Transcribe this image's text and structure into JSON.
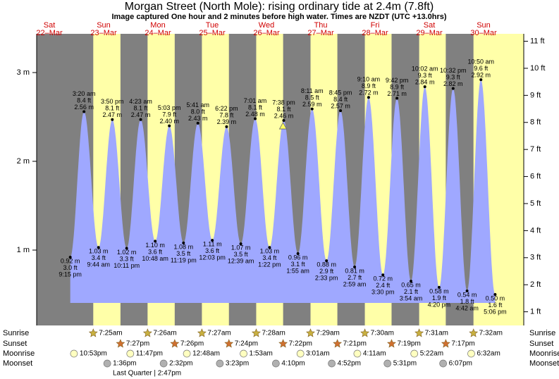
{
  "title": "Morgan Street (North Mole): rising  ordinary tide at 2.4m (7.8ft)",
  "subtitle": "Image captured One hour and 2 minutes before high water. Times are NZDT (UTC +13.0hrs)",
  "m_ticks": [
    {
      "value": 1,
      "label": "1 m"
    },
    {
      "value": 2,
      "label": "2 m"
    },
    {
      "value": 3,
      "label": "3 m"
    }
  ],
  "ft_ticks": [
    {
      "value": 1,
      "label": "1 ft"
    },
    {
      "value": 2,
      "label": "2 ft"
    },
    {
      "value": 3,
      "label": "3 ft"
    },
    {
      "value": 4,
      "label": "4 ft"
    },
    {
      "value": 5,
      "label": "5 ft"
    },
    {
      "value": 6,
      "label": "6 ft"
    },
    {
      "value": 7,
      "label": "7 ft"
    },
    {
      "value": 8,
      "label": "8 ft"
    },
    {
      "value": 9,
      "label": "9 ft"
    },
    {
      "value": 10,
      "label": "10 ft"
    },
    {
      "value": 11,
      "label": "11 ft"
    }
  ],
  "row_labels": {
    "sunrise": "Sunrise",
    "sunset": "Sunset",
    "moonrise": "Moonrise",
    "moonset": "Moonset"
  },
  "moon_phase": "Last Quarter | 2:47pm",
  "days": [
    {
      "weekday": "Sat",
      "date": "22–Mar",
      "moonrise": "10:53pm",
      "tides": [
        {
          "time": "9:15 pm",
          "m": 0.92,
          "m_label": "0.92 m",
          "ft_label": "3.0 ft",
          "type": "low"
        }
      ]
    },
    {
      "weekday": "Sun",
      "date": "23–Mar",
      "sunrise": "7:25am",
      "sunset": "7:27pm",
      "moonrise": "11:47pm",
      "moonset": "1:36pm",
      "tides": [
        {
          "time": "3:20 am",
          "m": 2.56,
          "m_label": "2.56 m",
          "ft_label": "8.4 ft",
          "type": "high"
        },
        {
          "time": "9:44 am",
          "m": 1.03,
          "m_label": "1.03 m",
          "ft_label": "3.4 ft",
          "type": "low"
        },
        {
          "time": "3:50 pm",
          "m": 2.47,
          "m_label": "2.47 m",
          "ft_label": "8.1 ft",
          "type": "high"
        },
        {
          "time": "10:11 pm",
          "m": 1.02,
          "m_label": "1.02 m",
          "ft_label": "3.3 ft",
          "type": "low"
        }
      ]
    },
    {
      "weekday": "Mon",
      "date": "24–Mar",
      "sunrise": "7:26am",
      "sunset": "7:26pm",
      "moonset": "2:32pm",
      "tides": [
        {
          "time": "4:23 am",
          "m": 2.47,
          "m_label": "2.47 m",
          "ft_label": "8.1 ft",
          "type": "high"
        },
        {
          "time": "10:48 am",
          "m": 1.1,
          "m_label": "1.10 m",
          "ft_label": "3.6 ft",
          "type": "low"
        },
        {
          "time": "5:03 pm",
          "m": 2.4,
          "m_label": "2.40 m",
          "ft_label": "7.9 ft",
          "type": "high"
        },
        {
          "time": "11:19 pm",
          "m": 1.08,
          "m_label": "1.08 m",
          "ft_label": "3.5 ft",
          "type": "low"
        }
      ]
    },
    {
      "weekday": "Tue",
      "date": "25–Mar",
      "sunrise": "7:27am",
      "sunset": "7:24pm",
      "moonrise": "12:48am",
      "moonset": "3:23pm",
      "tides": [
        {
          "time": "5:41 am",
          "m": 2.43,
          "m_label": "2.43 m",
          "ft_label": "8.0 ft",
          "type": "high"
        },
        {
          "time": "12:03 pm",
          "m": 1.11,
          "m_label": "1.11 m",
          "ft_label": "3.6 ft",
          "type": "low"
        },
        {
          "time": "6:22 pm",
          "m": 2.39,
          "m_label": "2.39 m",
          "ft_label": "7.8 ft",
          "type": "high"
        }
      ]
    },
    {
      "weekday": "Wed",
      "date": "26–Mar",
      "sunrise": "7:28am",
      "sunset": "7:22pm",
      "moonrise": "1:53am",
      "moonset": "4:10pm",
      "tides": [
        {
          "time": "12:39 am",
          "m": 1.07,
          "m_label": "1.07 m",
          "ft_label": "3.5 ft",
          "type": "low"
        },
        {
          "time": "7:01 am",
          "m": 2.48,
          "m_label": "2.48 m",
          "ft_label": "8.1 ft",
          "type": "high"
        },
        {
          "time": "1:22 pm",
          "m": 1.03,
          "m_label": "1.03 m",
          "ft_label": "3.4 ft",
          "type": "low"
        },
        {
          "time": "7:38 pm",
          "m": 2.46,
          "m_label": "2.46 m",
          "ft_label": "8.1 ft",
          "type": "high"
        }
      ]
    },
    {
      "weekday": "Thu",
      "date": "27–Mar",
      "sunrise": "7:29am",
      "sunset": "7:21pm",
      "moonrise": "3:01am",
      "moonset": "4:52pm",
      "tides": [
        {
          "time": "1:55 am",
          "m": 0.96,
          "m_label": "0.96 m",
          "ft_label": "3.1 ft",
          "type": "low"
        },
        {
          "time": "8:11 am",
          "m": 2.59,
          "m_label": "2.59 m",
          "ft_label": "8.5 ft",
          "type": "high"
        },
        {
          "time": "2:33 pm",
          "m": 0.88,
          "m_label": "0.88 m",
          "ft_label": "2.9 ft",
          "type": "low"
        },
        {
          "time": "8:45 pm",
          "m": 2.57,
          "m_label": "2.57 m",
          "ft_label": "8.4 ft",
          "type": "high"
        }
      ]
    },
    {
      "weekday": "Fri",
      "date": "28–Mar",
      "sunrise": "7:30am",
      "sunset": "7:19pm",
      "moonrise": "4:11am",
      "moonset": "5:31pm",
      "tides": [
        {
          "time": "2:59 am",
          "m": 0.81,
          "m_label": "0.81 m",
          "ft_label": "2.7 ft",
          "type": "low"
        },
        {
          "time": "9:10 am",
          "m": 2.72,
          "m_label": "2.72 m",
          "ft_label": "8.9 ft",
          "type": "high"
        },
        {
          "time": "3:30 pm",
          "m": 0.72,
          "m_label": "0.72 m",
          "ft_label": "2.4 ft",
          "type": "low"
        },
        {
          "time": "9:42 pm",
          "m": 2.71,
          "m_label": "2.71 m",
          "ft_label": "8.9 ft",
          "type": "high"
        }
      ]
    },
    {
      "weekday": "Sat",
      "date": "29–Mar",
      "sunrise": "7:31am",
      "sunset": "7:17pm",
      "moonrise": "5:22am",
      "moonset": "6:07pm",
      "tides": [
        {
          "time": "3:54 am",
          "m": 0.65,
          "m_label": "0.65 m",
          "ft_label": "2.1 ft",
          "type": "low"
        },
        {
          "time": "10:02 am",
          "m": 2.84,
          "m_label": "2.84 m",
          "ft_label": "9.3 ft",
          "type": "high"
        },
        {
          "time": "4:20 pm",
          "m": 0.58,
          "m_label": "0.58 m",
          "ft_label": "1.9 ft",
          "type": "low"
        },
        {
          "time": "10:32 pm",
          "m": 2.82,
          "m_label": "2.82 m",
          "ft_label": "9.3 ft",
          "type": "high"
        }
      ]
    },
    {
      "weekday": "Sun",
      "date": "30–Mar",
      "sunrise": "7:32am",
      "moonrise": "6:32am",
      "tides": [
        {
          "time": "4:42 am",
          "m": 0.54,
          "m_label": "0.54 m",
          "ft_label": "1.8 ft",
          "type": "low"
        },
        {
          "time": "10:50 am",
          "m": 2.92,
          "m_label": "2.92 m",
          "ft_label": "9.6 ft",
          "type": "high"
        },
        {
          "time": "5:06 pm",
          "m": 0.5,
          "m_label": "0.50 m",
          "ft_label": "1.6 ft",
          "type": "low"
        }
      ]
    }
  ]
}
